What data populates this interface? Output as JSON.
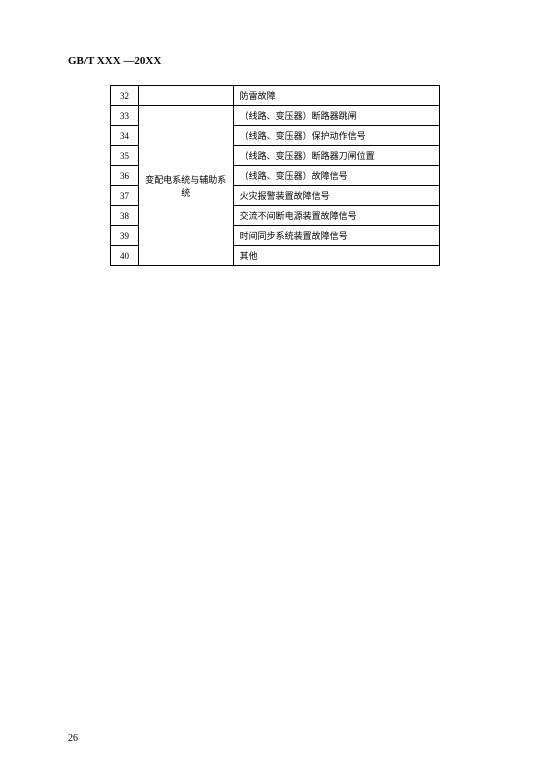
{
  "header": "GB/T  XXX  —20XX",
  "table": {
    "rows": [
      {
        "num": "32",
        "cat": "",
        "desc": "防雷故障",
        "catRowspan": 1,
        "showCat": true
      },
      {
        "num": "33",
        "cat": "变配电系统与辅助系统",
        "desc": "（线路、变压器）断路器跳闸",
        "catRowspan": 8,
        "showCat": true
      },
      {
        "num": "34",
        "cat": "",
        "desc": "（线路、变压器）保护动作信号",
        "catRowspan": 0,
        "showCat": false
      },
      {
        "num": "35",
        "cat": "",
        "desc": "（线路、变压器）断路器刀闸位置",
        "catRowspan": 0,
        "showCat": false
      },
      {
        "num": "36",
        "cat": "",
        "desc": "（线路、变压器）故障信号",
        "catRowspan": 0,
        "showCat": false
      },
      {
        "num": "37",
        "cat": "",
        "desc": "火灾报警装置故障信号",
        "catRowspan": 0,
        "showCat": false
      },
      {
        "num": "38",
        "cat": "",
        "desc": "交流不间断电源装置故障信号",
        "catRowspan": 0,
        "showCat": false
      },
      {
        "num": "39",
        "cat": "",
        "desc": "时间同步系统装置故障信号",
        "catRowspan": 0,
        "showCat": false
      },
      {
        "num": "40",
        "cat": "",
        "desc": "其他",
        "catRowspan": 0,
        "showCat": false
      }
    ]
  },
  "pageNumber": "26"
}
